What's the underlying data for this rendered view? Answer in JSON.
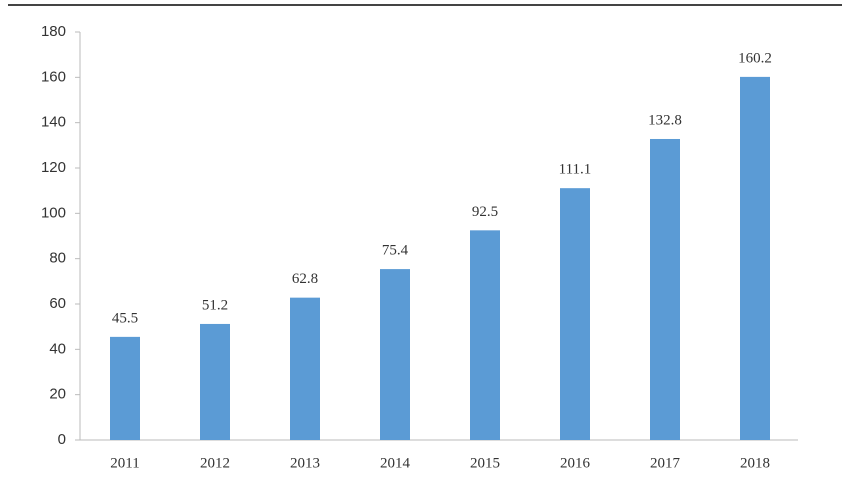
{
  "chart_data": {
    "type": "bar",
    "categories": [
      "2011",
      "2012",
      "2013",
      "2014",
      "2015",
      "2016",
      "2017",
      "2018"
    ],
    "values": [
      45.5,
      51.2,
      62.8,
      75.4,
      92.5,
      111.1,
      132.8,
      160.2
    ],
    "color": "#5b9bd5",
    "ylim": [
      0,
      180
    ],
    "yticks": [
      0,
      20,
      40,
      60,
      80,
      100,
      120,
      140,
      160,
      180
    ],
    "data_labels": true
  }
}
